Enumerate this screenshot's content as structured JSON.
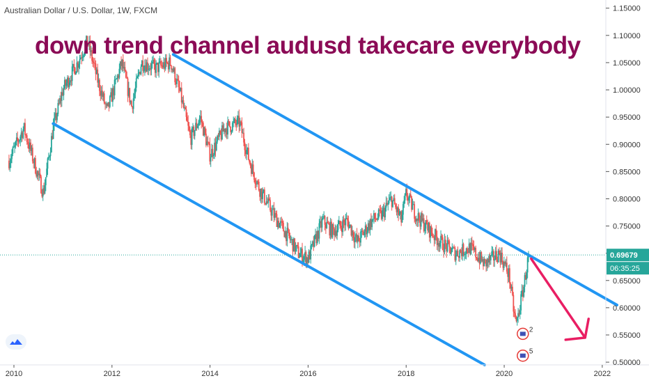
{
  "header": {
    "title": "Australian Dollar / U.S. Dollar, 1W, FXCM"
  },
  "annotation": {
    "text": "down trend channel audusd  takecare everybody"
  },
  "price_tag": {
    "value": "0.69679",
    "countdown": "06:35:25"
  },
  "events": [
    {
      "label": "2"
    },
    {
      "label": "5"
    }
  ],
  "colors": {
    "bullish": "#26a69a",
    "bearish": "#ef5350",
    "channel": "#2196f3",
    "arrow": "#e91e63",
    "text_overlay": "#8b0b56",
    "price_line": "#26a69a"
  },
  "icons": [
    "tradingview-logo-icon",
    "flag-event-icon"
  ],
  "chart_data": {
    "type": "candlestick",
    "xlim": [
      2010,
      2022.3
    ],
    "ylim": [
      0.495,
      1.165
    ],
    "x_ticks": [
      "2010",
      "2012",
      "2014",
      "2016",
      "2018",
      "2020",
      "2022"
    ],
    "x_tick_values": [
      2010,
      2012,
      2014,
      2016,
      2018,
      2020,
      2022
    ],
    "y_ticks": [
      "1.15000",
      "1.10000",
      "1.05000",
      "1.00000",
      "0.95000",
      "0.90000",
      "0.85000",
      "0.80000",
      "0.75000",
      "0.70000",
      "0.65000",
      "0.60000",
      "0.55000",
      "0.50000"
    ],
    "y_tick_values": [
      1.15,
      1.1,
      1.05,
      1.0,
      0.95,
      0.9,
      0.85,
      0.8,
      0.75,
      0.7,
      0.65,
      0.6,
      0.55,
      0.5
    ],
    "price_path": [
      [
        2009.9,
        0.87
      ],
      [
        2010.2,
        0.93
      ],
      [
        2010.5,
        0.84
      ],
      [
        2010.6,
        0.81
      ],
      [
        2010.8,
        0.93
      ],
      [
        2011.0,
        1.0
      ],
      [
        2011.3,
        1.05
      ],
      [
        2011.5,
        1.09
      ],
      [
        2011.7,
        1.02
      ],
      [
        2011.9,
        0.96
      ],
      [
        2012.2,
        1.05
      ],
      [
        2012.4,
        0.97
      ],
      [
        2012.6,
        1.05
      ],
      [
        2012.9,
        1.04
      ],
      [
        2013.2,
        1.05
      ],
      [
        2013.4,
        0.99
      ],
      [
        2013.6,
        0.91
      ],
      [
        2013.8,
        0.95
      ],
      [
        2014.0,
        0.88
      ],
      [
        2014.3,
        0.93
      ],
      [
        2014.6,
        0.94
      ],
      [
        2014.8,
        0.87
      ],
      [
        2015.0,
        0.82
      ],
      [
        2015.3,
        0.77
      ],
      [
        2015.6,
        0.73
      ],
      [
        2015.8,
        0.7
      ],
      [
        2016.0,
        0.69
      ],
      [
        2016.3,
        0.76
      ],
      [
        2016.5,
        0.74
      ],
      [
        2016.8,
        0.76
      ],
      [
        2017.0,
        0.72
      ],
      [
        2017.3,
        0.76
      ],
      [
        2017.5,
        0.77
      ],
      [
        2017.7,
        0.8
      ],
      [
        2017.9,
        0.76
      ],
      [
        2018.0,
        0.81
      ],
      [
        2018.2,
        0.77
      ],
      [
        2018.5,
        0.74
      ],
      [
        2018.7,
        0.72
      ],
      [
        2019.0,
        0.7
      ],
      [
        2019.3,
        0.71
      ],
      [
        2019.6,
        0.68
      ],
      [
        2019.9,
        0.7
      ],
      [
        2020.1,
        0.66
      ],
      [
        2020.2,
        0.59
      ],
      [
        2020.25,
        0.57
      ],
      [
        2020.4,
        0.64
      ],
      [
        2020.5,
        0.69679
      ]
    ],
    "channel_lines": [
      {
        "name": "",
        "points": [
          [
            2013.25,
            1.065
          ],
          [
            2022.3,
            0.605
          ]
        ]
      },
      {
        "name": "",
        "points": [
          [
            2010.8,
            0.938
          ],
          [
            2019.6,
            0.495
          ]
        ]
      }
    ],
    "arrow": {
      "from": [
        2020.55,
        0.69
      ],
      "to": [
        2021.65,
        0.545
      ]
    },
    "current_price": 0.69679,
    "events_at": [
      [
        2020.38,
        0.552
      ],
      [
        2020.38,
        0.512
      ]
    ],
    "grid": false,
    "legend": "none"
  }
}
